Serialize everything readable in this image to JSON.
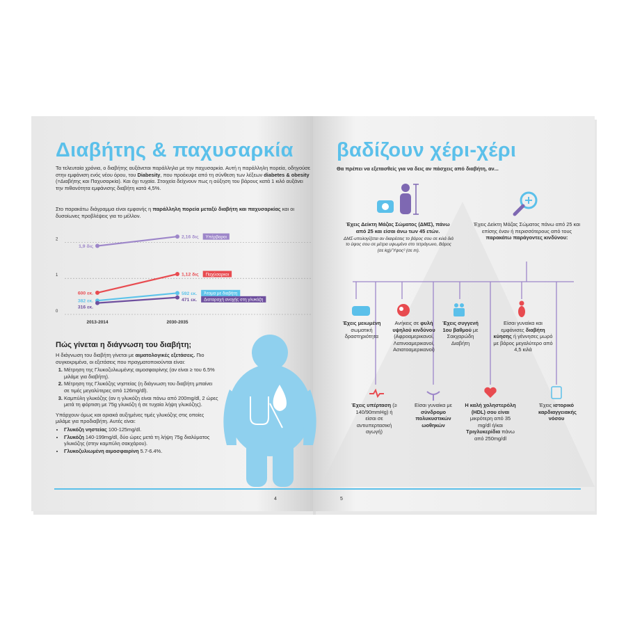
{
  "left_page": {
    "title": "Διαβήτης & παχυσαρκία",
    "intro": [
      "Τα τελευταία χρόνια, ο διαβήτης αυξάνεται παράλληλα με την παχυσαρκία. Αυτή η παράλληλη πορεία, οδηγούσε στην εμφάνιση ενός νέου όρου, του ",
      {
        "bold": "Diabesity"
      },
      ", που προέκυψε από τη σύνθεση των λέξεων ",
      {
        "bold": "diabetes & obesity"
      },
      " (=Διαβήτης και Παχυσαρκία). Και όχι τυχαία. Στοιχεία δείχνουν πως η αύξηση του βάρους κατά 1 κιλό αυξάνει την πιθανότητα εμφάνισης διαβήτη κατά 4,5%."
    ],
    "chart_intro": [
      "Στο παρακάτω διάγραμμα είναι εμφανής η ",
      {
        "bold": "παράλληλη πορεία μεταξύ διαβήτη και παχυσαρκίας"
      },
      " και οι δυσοίωνες προβλέψεις για το μέλλον."
    ],
    "diagnosis": {
      "heading": "Πώς γίνεται η διάγνωση του διαβήτη;",
      "intro": [
        "Η διάγνωση του διαβήτη γίνεται με ",
        {
          "bold": "αιματολογικές εξετάσεις."
        },
        " Πιο συγκεκριμένα, οι εξετάσεις που πραγματοποιούνται είναι:"
      ],
      "tests": [
        [
          "Μέτρηση της Γλυκοζυλιωμένης αιμοσφαιρίνης (αν είναι ≥ του 6.5% μιλάμε για διαβήτη)."
        ],
        [
          "Μέτρηση της Γλυκόζης νηστείας (η διάγνωση του διαβήτη μπαίνει σε τιμές μεγαλύτερες από 126mg/dl)."
        ],
        [
          "Καμπύλη γλυκόζης (αν η γλυκόζη είναι πάνω από 200mg/dl, 2 ώρες μετά τη φόρτιση με 75g γλυκόζη ή σε τυχαία λήψη γλυκόζης)."
        ]
      ],
      "prediabetes_intro": "Υπάρχουν όμως και οριακά αυξημένες τιμές γλυκόζης στις οποίες μιλάμε για προδιαβήτη. Αυτές είναι:",
      "prediabetes": [
        [
          {
            "bold": "Γλυκόζη νηστείας"
          },
          " 100-125mg/dl."
        ],
        [
          {
            "bold": "Γλυκόζη"
          },
          " 140-199mg/dl, δύο ώρες μετά τη λήψη 75g διαλύματος γλυκόζης (στην καμπύλη σακχάρου)."
        ],
        [
          {
            "bold": "Γλυκοζυλιωμένη αιμοσφαιρίνη"
          },
          " 5.7-6.4%."
        ]
      ]
    },
    "page_number": "4"
  },
  "chart_data": {
    "type": "line",
    "categories": [
      "2013-2014",
      "2030-2035"
    ],
    "ylim": [
      0,
      2.2
    ],
    "yticks": [
      0,
      1,
      2
    ],
    "grid": true,
    "series": [
      {
        "name": "Υπέρβαροι",
        "color": "#9d86c9",
        "values": [
          1.9,
          2.16
        ],
        "value_labels": [
          "1,9 δις",
          "2,16 δις"
        ]
      },
      {
        "name": "Παχύσαρκοι",
        "color": "#e84b50",
        "values": [
          0.6,
          1.12
        ],
        "value_labels": [
          "600 εκ.",
          "1,12 δις"
        ]
      },
      {
        "name": "Άτομα με διαβήτη",
        "color": "#5cc3ea",
        "values": [
          0.382,
          0.592
        ],
        "value_labels": [
          "382 εκ.",
          "592 εκ."
        ]
      },
      {
        "name": "Διαταραχή ανοχής στη γλυκόζη",
        "color": "#6e4f9e",
        "values": [
          0.316,
          0.471
        ],
        "value_labels": [
          "316 εκ.",
          "471 εκ."
        ]
      }
    ]
  },
  "right_page": {
    "title": "βαδίζουν χέρι-χέρι",
    "subtitle": "Θα πρέπει να εξετασθείς για να δεις αν πάσχεις από διαβήτη, αν...",
    "bmi_box": {
      "text": "Έχεις Δείκτη Μάζας Σώματος (ΔΜΣ), πάνω από 25 και είσαι άνω των 45 ετών.",
      "note": "ΔΜΣ-υπολογίζεται αν διαιρέσεις το βάρος σου σε κιλά διά το ύψος σου σε μέτρα υψωμένο στο τετράγωνο, Βάρος (σε kg)/Ύψος² (σε m)."
    },
    "risk_box": [
      "Έχεις Δείκτη Μάζας Σώματος πάνω από 25 και επίσης έναν ή περισσότερους από τους ",
      {
        "bold": "παρακάτω παράγοντες κινδύνου:"
      }
    ],
    "factors": [
      [
        {
          "bold": "Έχεις μειωμένη"
        },
        " σωματική δραστηριότητα"
      ],
      [
        "Ανήκεις σε ",
        {
          "bold": "φυλή υψηλού κινδύνου"
        },
        " (Αφροαμερικανοί, Λατινοαμερικανοί, Ασιατοαμερικανοί)"
      ],
      [
        {
          "bold": "Έχεις συγγενή 1ου βαθμού"
        },
        " με Σακχαρώδη Διαβήτη"
      ],
      [
        "Είσαι γυναίκα και εμφάνισες ",
        {
          "bold": "διαβήτη κύησης"
        },
        " ή γέννησες μωρό με βάρος μεγαλύτερο από 4,5 κιλά"
      ],
      [
        {
          "bold": "Έχεις υπέρταση"
        },
        " (≥ 140/90mmHg) ή είσαι σε αντιυπερτασική αγωγή)"
      ],
      [
        "Είσαι γυναίκα με ",
        {
          "bold": "σύνδρομο πολυκυστικών ωοθηκών"
        }
      ],
      [
        {
          "bold": "Η καλή χοληστερόλη (HDL) σου είναι"
        },
        " μικρότερη από 35 mg/dl ή/και ",
        {
          "bold": "Τριγλυκερίδια"
        },
        " πάνω από 250mg/dl"
      ],
      [
        "Έχεις ",
        {
          "bold": "ιστορικό καρδιαγγειακής νόσου"
        }
      ]
    ],
    "page_number": "5"
  }
}
